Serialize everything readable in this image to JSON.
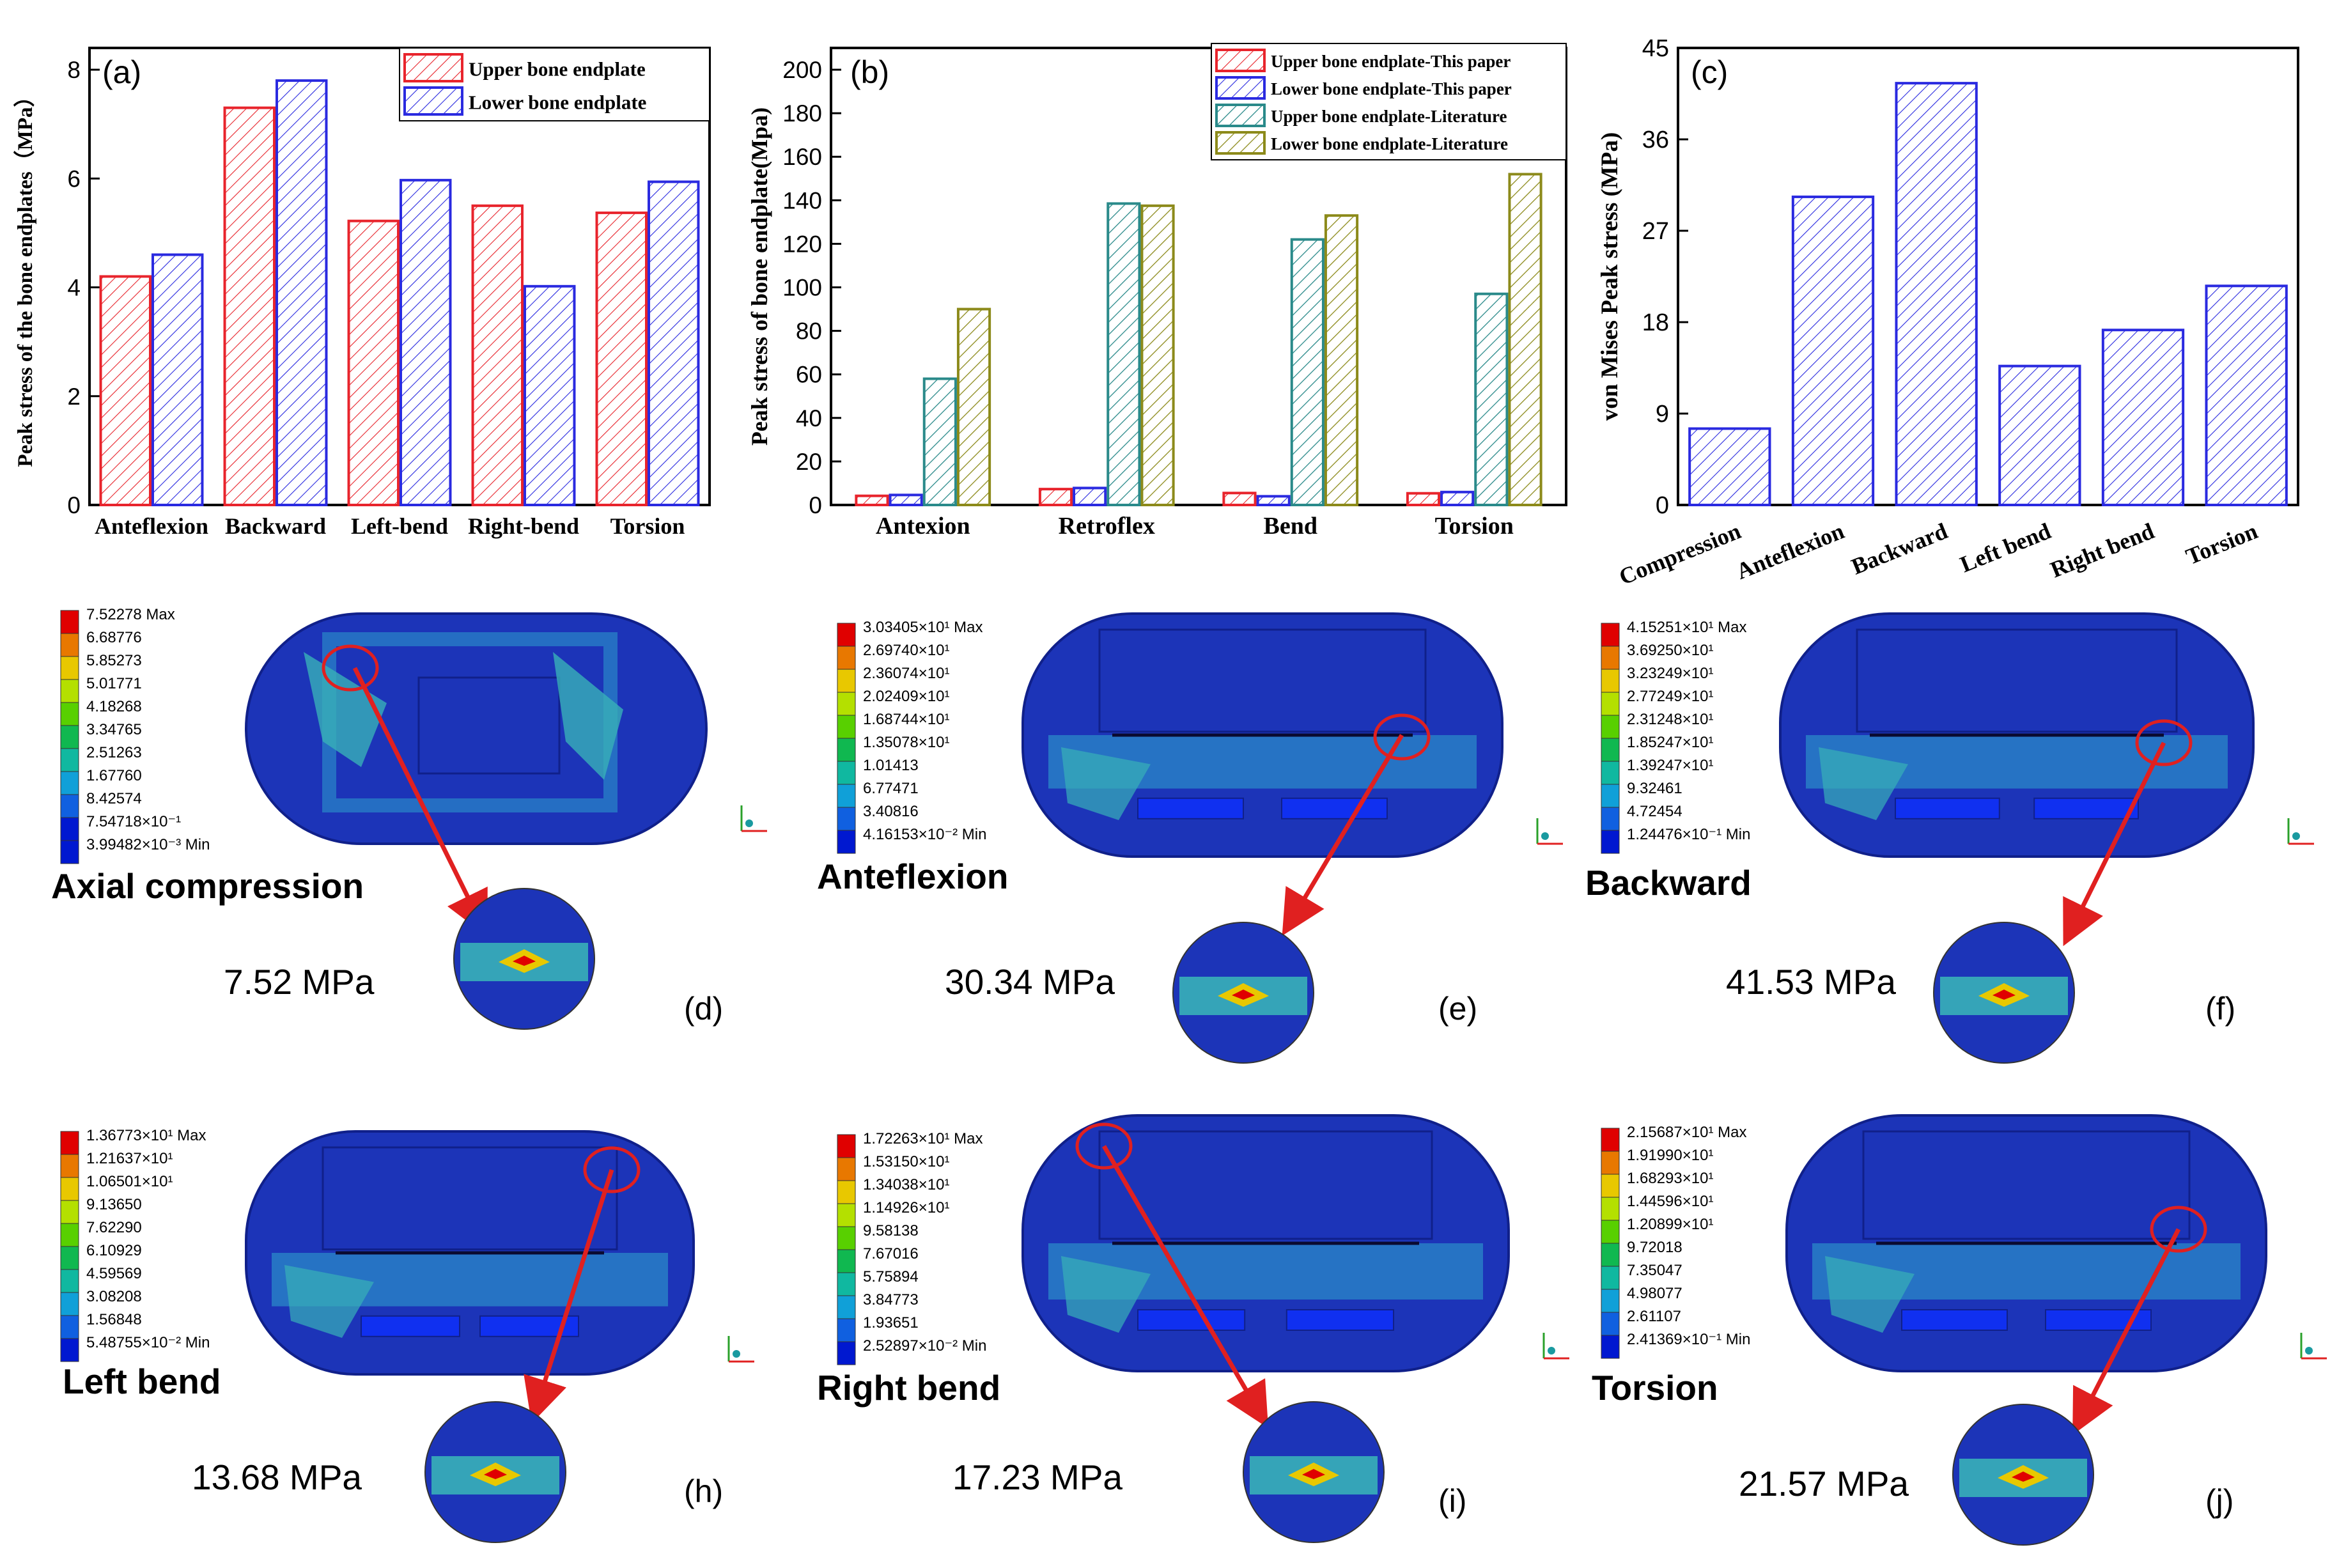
{
  "chart_data": [
    {
      "type": "bar",
      "panel": "(a)",
      "categories": [
        "Anteflexion",
        "Backward",
        "Left-bend",
        "Right-bend",
        "Torsion"
      ],
      "series": [
        {
          "name": "Upper bone endplate",
          "values": [
            4.2,
            7.3,
            5.22,
            5.5,
            5.37
          ],
          "color": "#e8242c"
        },
        {
          "name": "Lower bone endplate",
          "values": [
            4.6,
            7.8,
            5.97,
            4.02,
            5.94
          ],
          "color": "#2a2ae0"
        }
      ],
      "ylabel": "Peak stress of the bone endplates（MPa）",
      "xlabel": "",
      "ylim": [
        0,
        8.4
      ],
      "yticks": [
        "0",
        "2",
        "4",
        "6",
        "8"
      ],
      "legend": "top-right"
    },
    {
      "type": "bar",
      "panel": "(b)",
      "categories": [
        "Antexion",
        "Retroflex",
        "Bend",
        "Torsion"
      ],
      "series": [
        {
          "name": "Upper bone endplate-This paper",
          "values": [
            4.2,
            7.3,
            5.5,
            5.37
          ],
          "color": "#e8242c"
        },
        {
          "name": "Lower bone endplate-This paper",
          "values": [
            4.6,
            7.8,
            4.0,
            5.94
          ],
          "color": "#2a2ae0"
        },
        {
          "name": "Upper bone endplate-Literature",
          "values": [
            58,
            138.5,
            122,
            97
          ],
          "color": "#2a8a8a"
        },
        {
          "name": "Lower bone endplate-Literature",
          "values": [
            90,
            137.5,
            133,
            152
          ],
          "color": "#8c8a1a"
        }
      ],
      "ylabel": "Peak stress of bone endplate(Mpa)",
      "xlabel": "",
      "ylim": [
        0,
        210
      ],
      "yticks": [
        "0",
        "20",
        "40",
        "60",
        "80",
        "100",
        "120",
        "140",
        "160",
        "180",
        "200"
      ],
      "legend": "top-right"
    },
    {
      "type": "bar",
      "panel": "(c)",
      "categories": [
        "Compression",
        "Anteflexion",
        "Backward",
        "Left bend",
        "Right bend",
        "Torsion"
      ],
      "series": [
        {
          "name": "von Mises Peak stress",
          "values": [
            7.52,
            30.34,
            41.53,
            13.68,
            17.23,
            21.57
          ],
          "color": "#2a2ae0"
        }
      ],
      "ylabel": "von Mises  Peak stress (MPa)",
      "xlabel": "",
      "ylim": [
        0,
        45
      ],
      "yticks": [
        "0",
        "9",
        "18",
        "27",
        "36",
        "45"
      ]
    }
  ],
  "contours": [
    {
      "id": "d",
      "label": "(d)",
      "title": "Axial compression",
      "peak": "7.52 MPa",
      "scale": [
        "7.52278  Max",
        "6.68776",
        "5.85273",
        "5.01771",
        "4.18268",
        "3.34765",
        "2.51263",
        "1.67760",
        "8.42574",
        "7.54718×10⁻¹",
        "3.99482×10⁻³ Min"
      ]
    },
    {
      "id": "e",
      "label": "(e)",
      "title": "Anteflexion",
      "peak": "30.34 MPa",
      "scale": [
        "3.03405×10¹ Max",
        "2.69740×10¹",
        "2.36074×10¹",
        "2.02409×10¹",
        "1.68744×10¹",
        "1.35078×10¹",
        "1.01413",
        "6.77471",
        "3.40816",
        "4.16153×10⁻² Min"
      ]
    },
    {
      "id": "f",
      "label": "(f)",
      "title": "Backward",
      "peak": "41.53 MPa",
      "scale": [
        "4.15251×10¹ Max",
        "3.69250×10¹",
        "3.23249×10¹",
        "2.77249×10¹",
        "2.31248×10¹",
        "1.85247×10¹",
        "1.39247×10¹",
        "9.32461",
        "4.72454",
        "1.24476×10⁻¹ Min"
      ]
    },
    {
      "id": "h",
      "label": "(h)",
      "title": "Left bend",
      "peak": "13.68 MPa",
      "scale": [
        "1.36773×10¹ Max",
        "1.21637×10¹",
        "1.06501×10¹",
        "9.13650",
        "7.62290",
        "6.10929",
        "4.59569",
        "3.08208",
        "1.56848",
        "5.48755×10⁻² Min"
      ]
    },
    {
      "id": "i",
      "label": "(i)",
      "title": "Right bend",
      "peak": "17.23 MPa",
      "scale": [
        "1.72263×10¹ Max",
        "1.53150×10¹",
        "1.34038×10¹",
        "1.14926×10¹",
        "9.58138",
        "7.67016",
        "5.75894",
        "3.84773",
        "1.93651",
        "2.52897×10⁻² Min"
      ]
    },
    {
      "id": "j",
      "label": "(j)",
      "title": "Torsion",
      "peak": "21.57 MPa",
      "scale": [
        "2.15687×10¹ Max",
        "1.91990×10¹",
        "1.68293×10¹",
        "1.44596×10¹",
        "1.20899×10¹",
        "9.72018",
        "7.35047",
        "4.98077",
        "2.61107",
        "2.41369×10⁻¹ Min"
      ]
    }
  ],
  "colors": {
    "scale": [
      "#e00000",
      "#e87800",
      "#e8c800",
      "#b4e000",
      "#58d000",
      "#10b850",
      "#10b8a0",
      "#10a0d8",
      "#1060e0",
      "#0018d0"
    ],
    "body": "#1c34b8",
    "body_dark": "#10208a",
    "mid": "#2a88c8",
    "light": "#38b0b8",
    "arrow": "#e02020"
  }
}
